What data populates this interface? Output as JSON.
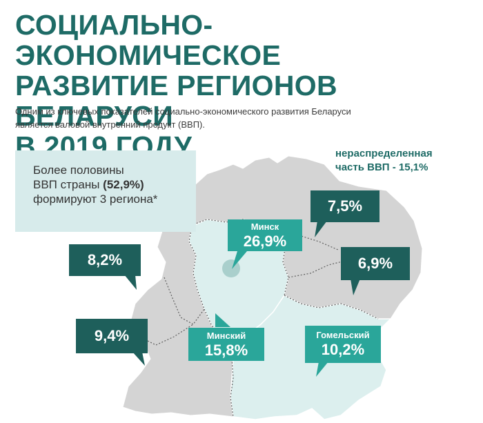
{
  "title": {
    "line1": "СОЦИАЛЬНО-ЭКОНОМИЧЕСКОЕ",
    "line2": "РАЗВИТИЕ РЕГИОНОВ БЕЛАРУСИ",
    "line3": "В 2019 ГОДУ"
  },
  "subtitle": {
    "line1": "Одним из ключевых показателей социально-экономического развития Беларуси",
    "line2": "является валовой внутренний продукт (ВВП)."
  },
  "info_box": {
    "line1": "Более половины",
    "line2_prefix": "ВВП страны ",
    "line2_bold": "(52,9%)",
    "line3": "формируют 3 региона*"
  },
  "unallocated": {
    "line1": "нераспределенная",
    "line2": "часть ВВП - 15,1%"
  },
  "regions": {
    "minsk_city": {
      "label": "Минск",
      "value": "26,9%"
    },
    "vitebsk": {
      "value": "7,5%"
    },
    "grodno": {
      "value": "8,2%"
    },
    "mogilev": {
      "value": "6,9%"
    },
    "brest": {
      "value": "9,4%"
    },
    "minsk_region": {
      "label": "Минский",
      "value": "15,8%"
    },
    "gomel": {
      "label": "Гомельский",
      "value": "10,2%"
    }
  },
  "colors": {
    "title": "#1e6b66",
    "callout_dark": "#1e5f5b",
    "callout_light": "#2aa69a",
    "map_gray": "#d4d4d4",
    "map_highlight": "#dcefee",
    "info_box_bg": "#d7ebeb"
  }
}
